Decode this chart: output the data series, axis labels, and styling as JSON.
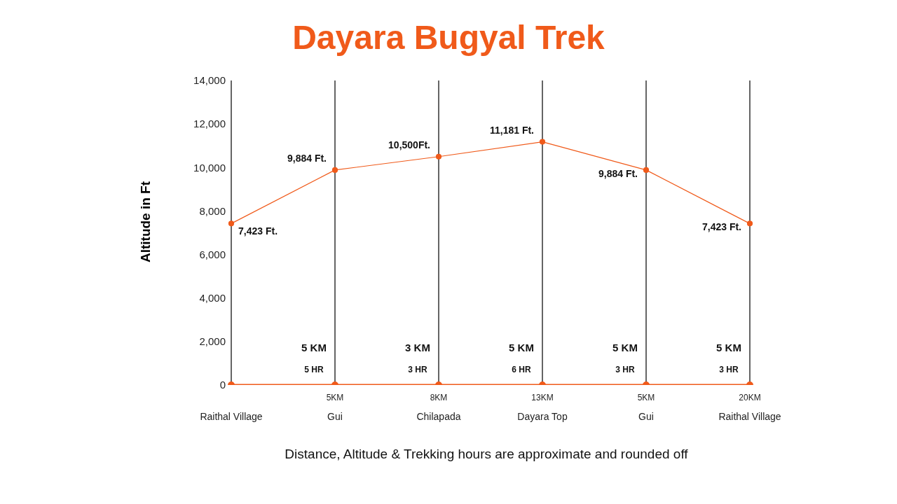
{
  "chart_data": {
    "type": "line",
    "title": "Dayara Bugyal Trek",
    "ylabel": "Altitude in Ft",
    "categories": [
      "Raithal Village",
      "Gui",
      "Chilapada",
      "Dayara Top",
      "Gui",
      "Raithal Village"
    ],
    "series": [
      {
        "color": "#f05a1a",
        "values": [
          7423,
          9884,
          10500,
          11181,
          9884,
          7423
        ],
        "value_labels": [
          "7,423 Ft.",
          "9,884 Ft.",
          "10,500Ft.",
          "11,181 Ft.",
          "9,884 Ft.",
          "7,423 Ft."
        ]
      },
      {
        "color": "#f05a1a",
        "values": [
          0,
          0,
          0,
          0,
          0,
          0
        ]
      }
    ],
    "ylim": [
      0,
      14000
    ],
    "yticks": [
      0,
      {
        "value": 2000,
        "label": "2,000"
      },
      {
        "value": 4000,
        "label": "4,000"
      },
      {
        "value": 6000,
        "label": "6,000"
      },
      {
        "value": 8000,
        "label": "8,000"
      },
      {
        "value": 10000,
        "label": "10,000"
      },
      {
        "value": 12000,
        "label": "12,000"
      },
      {
        "value": 14000,
        "label": "14,000"
      }
    ],
    "grid": "x",
    "marker": "circle",
    "line_style": "solid",
    "annotations": [
      "5KM",
      "8KM",
      "13KM",
      "5KM",
      "20KM",
      "5 KM",
      "5 HR",
      "3 KM",
      "3 HR",
      "5 KM",
      "6 HR",
      "5 KM",
      "3 HR",
      "5 KM",
      "3 HR",
      "Distance, Altitude & Trekking hours are approximate and rounded off"
    ]
  }
}
